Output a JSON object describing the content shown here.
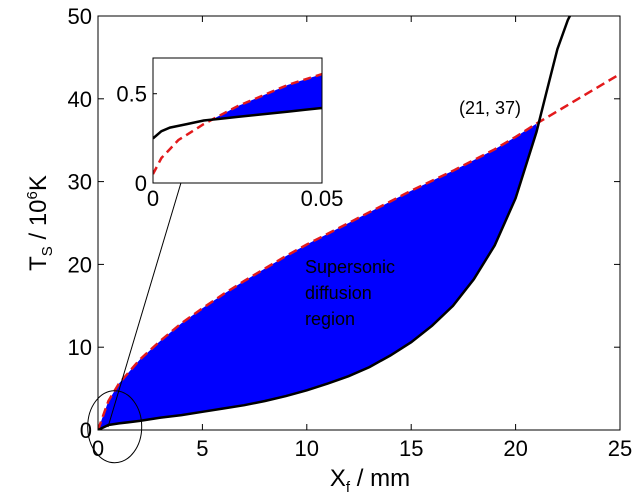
{
  "chart_data": {
    "type": "line",
    "main": {
      "xlim": [
        0,
        25
      ],
      "ylim": [
        0,
        50
      ],
      "x_ticks": [
        0,
        5,
        10,
        15,
        20,
        25
      ],
      "y_ticks": [
        0,
        10,
        20,
        30,
        40,
        50
      ],
      "xlabel": {
        "base": "X",
        "sub": "f",
        "rest": " / mm"
      },
      "ylabel": {
        "base": "T",
        "sub": "S",
        "mid": " / 10",
        "sup": "6",
        "end": "K"
      },
      "series": [
        {
          "style": "black-solid",
          "color": "#000000",
          "x": [
            0,
            0.5,
            1,
            2,
            3,
            4,
            5,
            6,
            7,
            8,
            9,
            10,
            11,
            12,
            13,
            14,
            15,
            16,
            17,
            18,
            19,
            20,
            21,
            21.5,
            22,
            22.5,
            22.8
          ],
          "y": [
            0,
            0.6,
            0.8,
            1.1,
            1.5,
            1.8,
            2.2,
            2.6,
            3.0,
            3.5,
            4.1,
            4.8,
            5.6,
            6.5,
            7.6,
            9.0,
            10.6,
            12.6,
            15.0,
            18.2,
            22.3,
            28.0,
            36.0,
            41.0,
            46.0,
            49.5,
            51
          ]
        },
        {
          "style": "red-dashed",
          "color": "#e31a1c",
          "x": [
            0,
            0.5,
            1,
            2,
            3,
            4,
            5,
            6,
            7,
            8,
            9,
            10,
            11,
            12,
            13,
            14,
            15,
            16,
            17,
            18,
            19,
            20,
            21,
            22,
            23,
            24,
            25
          ],
          "y": [
            0,
            3.5,
            5.6,
            8.5,
            10.8,
            12.9,
            14.7,
            16.4,
            18.0,
            19.5,
            21.0,
            22.4,
            23.7,
            25.0,
            26.3,
            27.6,
            28.9,
            30.1,
            31.3,
            32.6,
            33.9,
            35.4,
            37.0,
            38.5,
            40.0,
            41.5,
            43.0
          ]
        }
      ],
      "fill_color": "#0000ff",
      "fill_label": [
        "Supersonic",
        "diffusion",
        "region"
      ],
      "annotation": {
        "text": "(21, 37)",
        "x": 21,
        "y": 37
      },
      "circle": {
        "x": 0.8,
        "y": 0.4
      }
    },
    "inset": {
      "xlim": [
        0,
        0.05
      ],
      "ylim": [
        0,
        0.7
      ],
      "x_ticks": [
        0,
        0.05
      ],
      "x_tick_labels": [
        "0",
        "0.05"
      ],
      "y_ticks": [
        0,
        0.5
      ],
      "y_tick_labels": [
        "0",
        "0.5"
      ],
      "black_x": [
        0,
        0.0025,
        0.005,
        0.0075,
        0.01,
        0.015,
        0.02,
        0.025,
        0.03,
        0.035,
        0.04,
        0.045,
        0.05
      ],
      "black_y": [
        0.25,
        0.29,
        0.31,
        0.32,
        0.33,
        0.35,
        0.36,
        0.37,
        0.38,
        0.39,
        0.4,
        0.41,
        0.42
      ],
      "red_x": [
        0,
        0.0025,
        0.005,
        0.0075,
        0.01,
        0.015,
        0.02,
        0.025,
        0.03,
        0.035,
        0.04,
        0.045,
        0.05
      ],
      "red_y": [
        0.05,
        0.14,
        0.19,
        0.24,
        0.27,
        0.33,
        0.38,
        0.43,
        0.47,
        0.51,
        0.55,
        0.58,
        0.61
      ]
    }
  }
}
